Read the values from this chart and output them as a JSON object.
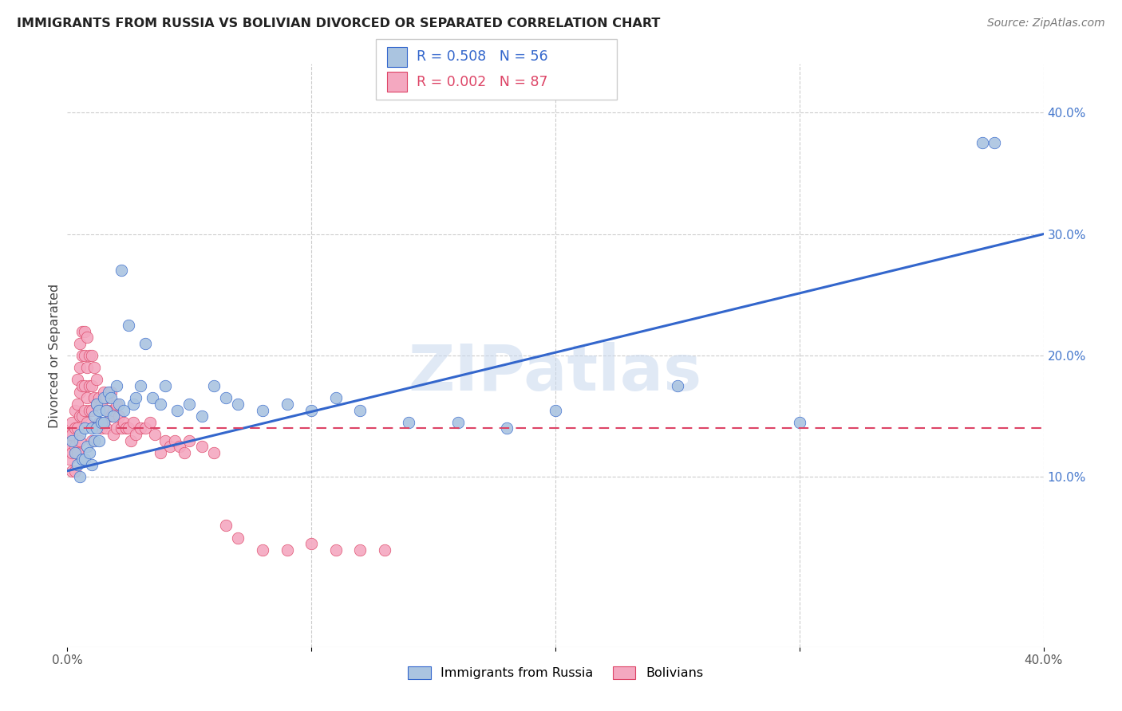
{
  "title": "IMMIGRANTS FROM RUSSIA VS BOLIVIAN DIVORCED OR SEPARATED CORRELATION CHART",
  "source": "Source: ZipAtlas.com",
  "ylabel": "Divorced or Separated",
  "legend_label_1": "Immigrants from Russia",
  "legend_label_2": "Bolivians",
  "R1": 0.508,
  "N1": 56,
  "R2": 0.002,
  "N2": 87,
  "color1": "#aac4e0",
  "color2": "#f4a8c0",
  "line1_color": "#3366cc",
  "line2_color": "#dd4466",
  "xmin": 0.0,
  "xmax": 0.4,
  "ymin": -0.04,
  "ymax": 0.44,
  "watermark": "ZIPatlas",
  "russia_x": [
    0.002,
    0.003,
    0.004,
    0.005,
    0.005,
    0.006,
    0.007,
    0.007,
    0.008,
    0.009,
    0.01,
    0.01,
    0.011,
    0.011,
    0.012,
    0.012,
    0.013,
    0.013,
    0.014,
    0.015,
    0.015,
    0.016,
    0.017,
    0.018,
    0.019,
    0.02,
    0.021,
    0.022,
    0.023,
    0.025,
    0.027,
    0.028,
    0.03,
    0.032,
    0.035,
    0.038,
    0.04,
    0.045,
    0.05,
    0.055,
    0.06,
    0.065,
    0.07,
    0.08,
    0.09,
    0.1,
    0.11,
    0.12,
    0.14,
    0.16,
    0.18,
    0.2,
    0.25,
    0.3,
    0.375,
    0.38
  ],
  "russia_y": [
    0.13,
    0.12,
    0.11,
    0.135,
    0.1,
    0.115,
    0.14,
    0.115,
    0.125,
    0.12,
    0.14,
    0.11,
    0.15,
    0.13,
    0.16,
    0.14,
    0.155,
    0.13,
    0.145,
    0.165,
    0.145,
    0.155,
    0.17,
    0.165,
    0.15,
    0.175,
    0.16,
    0.27,
    0.155,
    0.225,
    0.16,
    0.165,
    0.175,
    0.21,
    0.165,
    0.16,
    0.175,
    0.155,
    0.16,
    0.15,
    0.175,
    0.165,
    0.16,
    0.155,
    0.16,
    0.155,
    0.165,
    0.155,
    0.145,
    0.145,
    0.14,
    0.155,
    0.175,
    0.145,
    0.375,
    0.375
  ],
  "bolivia_x": [
    0.001,
    0.001,
    0.001,
    0.002,
    0.002,
    0.002,
    0.002,
    0.003,
    0.003,
    0.003,
    0.003,
    0.004,
    0.004,
    0.004,
    0.004,
    0.005,
    0.005,
    0.005,
    0.005,
    0.005,
    0.006,
    0.006,
    0.006,
    0.006,
    0.007,
    0.007,
    0.007,
    0.007,
    0.008,
    0.008,
    0.008,
    0.008,
    0.009,
    0.009,
    0.009,
    0.01,
    0.01,
    0.01,
    0.01,
    0.011,
    0.011,
    0.012,
    0.012,
    0.013,
    0.013,
    0.014,
    0.014,
    0.015,
    0.015,
    0.016,
    0.016,
    0.017,
    0.018,
    0.018,
    0.019,
    0.019,
    0.02,
    0.02,
    0.021,
    0.022,
    0.023,
    0.024,
    0.025,
    0.026,
    0.027,
    0.028,
    0.03,
    0.032,
    0.034,
    0.036,
    0.038,
    0.04,
    0.042,
    0.044,
    0.046,
    0.048,
    0.05,
    0.055,
    0.06,
    0.065,
    0.07,
    0.08,
    0.09,
    0.1,
    0.11,
    0.12,
    0.13
  ],
  "bolivia_y": [
    0.135,
    0.125,
    0.115,
    0.145,
    0.135,
    0.12,
    0.105,
    0.155,
    0.14,
    0.125,
    0.105,
    0.18,
    0.16,
    0.14,
    0.12,
    0.21,
    0.19,
    0.17,
    0.15,
    0.13,
    0.22,
    0.2,
    0.175,
    0.15,
    0.22,
    0.2,
    0.175,
    0.155,
    0.215,
    0.19,
    0.165,
    0.145,
    0.2,
    0.175,
    0.155,
    0.2,
    0.175,
    0.155,
    0.13,
    0.19,
    0.165,
    0.18,
    0.16,
    0.165,
    0.145,
    0.16,
    0.14,
    0.17,
    0.145,
    0.165,
    0.14,
    0.155,
    0.17,
    0.15,
    0.155,
    0.135,
    0.16,
    0.14,
    0.15,
    0.14,
    0.145,
    0.14,
    0.14,
    0.13,
    0.145,
    0.135,
    0.14,
    0.14,
    0.145,
    0.135,
    0.12,
    0.13,
    0.125,
    0.13,
    0.125,
    0.12,
    0.13,
    0.125,
    0.12,
    0.06,
    0.05,
    0.04,
    0.04,
    0.045,
    0.04,
    0.04,
    0.04
  ],
  "line1_x0": 0.0,
  "line1_y0": 0.105,
  "line1_x1": 0.4,
  "line1_y1": 0.3,
  "line2_x0": 0.0,
  "line2_y0": 0.14,
  "line2_x1": 0.4,
  "line2_y1": 0.14
}
